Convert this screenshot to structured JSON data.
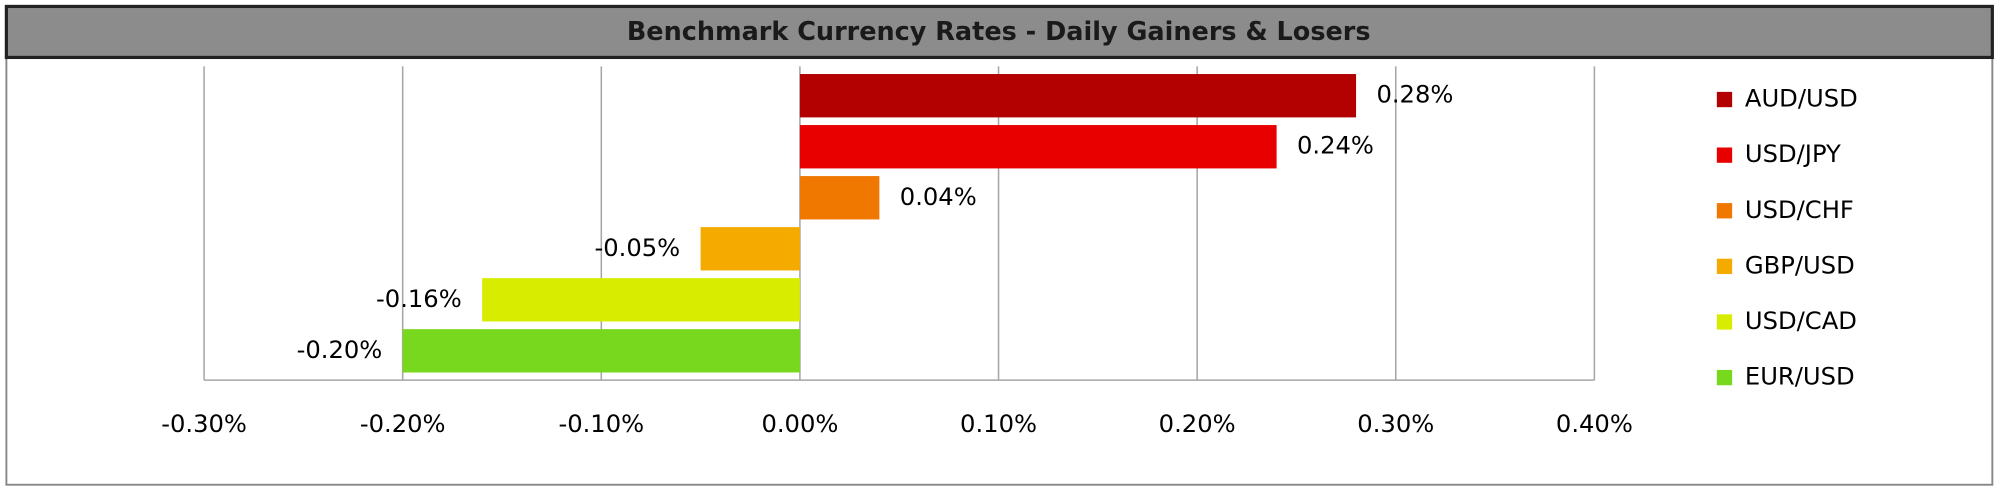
{
  "chart_data": {
    "type": "bar",
    "orientation": "horizontal",
    "title": "Benchmark Currency Rates - Daily Gainers & Losers",
    "categories": [
      "AUD/USD",
      "USD/JPY",
      "USD/CHF",
      "GBP/USD",
      "USD/CAD",
      "EUR/USD"
    ],
    "values": [
      0.28,
      0.24,
      0.04,
      -0.05,
      -0.16,
      -0.2
    ],
    "value_labels": [
      "0.28%",
      "0.24%",
      "0.04%",
      "-0.05%",
      "-0.16%",
      "-0.20%"
    ],
    "colors": [
      "#b30000",
      "#e80000",
      "#f07800",
      "#f5aa00",
      "#d8ec00",
      "#78d81e"
    ],
    "xlim": [
      -0.3,
      0.4
    ],
    "xticks": [
      {
        "value": -0.3,
        "label": "-0.30%"
      },
      {
        "value": -0.2,
        "label": "-0.20%"
      },
      {
        "value": -0.1,
        "label": "-0.10%"
      },
      {
        "value": 0,
        "label": "0.00%"
      },
      {
        "value": 0.1,
        "label": "0.10%"
      },
      {
        "value": 0.2,
        "label": "0.20%"
      },
      {
        "value": 0.3,
        "label": "0.30%"
      },
      {
        "value": 0.4,
        "label": "0.40%"
      }
    ],
    "grid": true,
    "legend": "right"
  }
}
